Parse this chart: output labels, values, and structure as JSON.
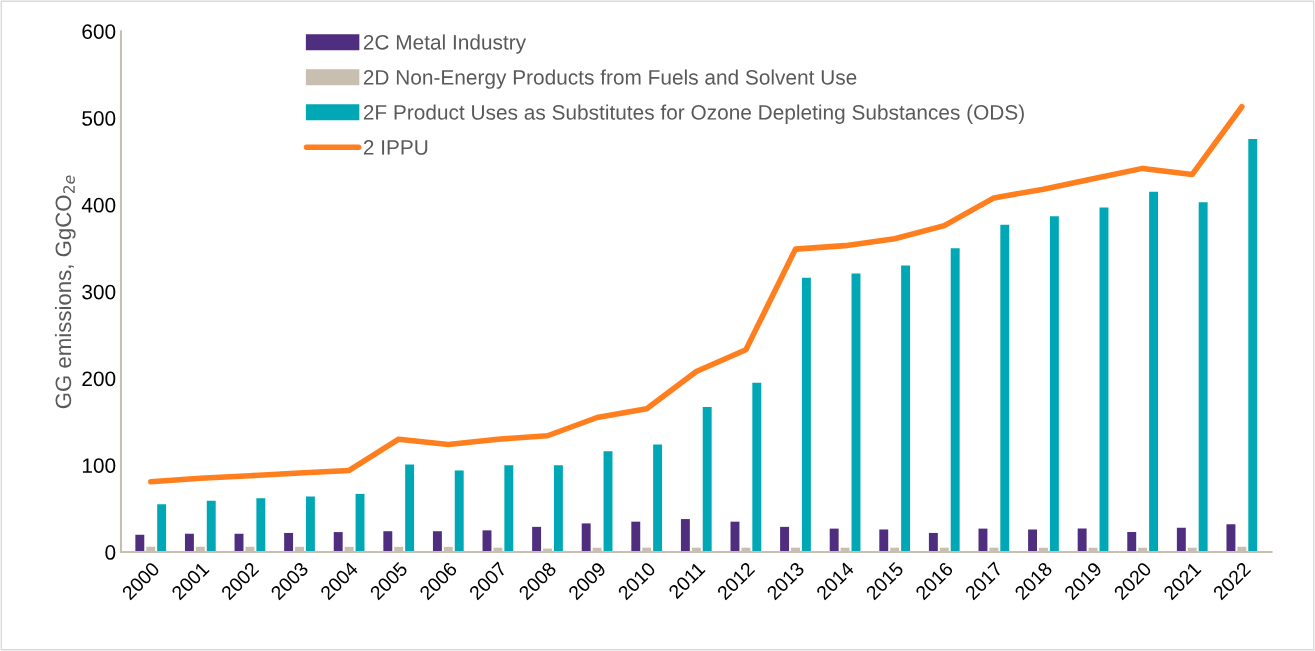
{
  "chart_data": {
    "type": "bar",
    "ylabel": "GG emissions, GgCO$_{2e}$",
    "categories": [
      "2000",
      "2001",
      "2002",
      "2003",
      "2004",
      "2005",
      "2006",
      "2007",
      "2008",
      "2009",
      "2010",
      "2011",
      "2012",
      "2013",
      "2014",
      "2015",
      "2016",
      "2017",
      "2018",
      "2019",
      "2020",
      "2021",
      "2022"
    ],
    "series": [
      {
        "name": "2C Metal Industry",
        "color": "#4f2d7f",
        "values": [
          20,
          21,
          21,
          22,
          23,
          24,
          24,
          25,
          29,
          33,
          35,
          38,
          35,
          29,
          27,
          26,
          22,
          27,
          26,
          27,
          23,
          28,
          32
        ]
      },
      {
        "name": "2D Non-Energy Products from Fuels and Solvent Use",
        "color": "#c8bfb0",
        "values": [
          6,
          6,
          6,
          6,
          6,
          6,
          6,
          5,
          4,
          5,
          5,
          5,
          5,
          5,
          5,
          5,
          5,
          5,
          5,
          5,
          5,
          5,
          6
        ]
      },
      {
        "name": "2F Product Uses as Substitutes for Ozone Depleting Substances (ODS)",
        "color": "#00a8b5",
        "values": [
          55,
          59,
          62,
          64,
          67,
          101,
          94,
          100,
          100,
          116,
          124,
          167,
          195,
          316,
          321,
          330,
          350,
          377,
          387,
          397,
          415,
          403,
          476
        ]
      },
      {
        "name": "2 IPPU",
        "type": "line",
        "color": "#ff7f1f",
        "line_style": "solid",
        "values": [
          81,
          85,
          88,
          91,
          94,
          130,
          124,
          130,
          134,
          155,
          165,
          208,
          233,
          349,
          353,
          361,
          376,
          408,
          418,
          430,
          442,
          435,
          513
        ]
      }
    ],
    "ylim": [
      0,
      600
    ],
    "yticks": [
      0,
      100,
      200,
      300,
      400,
      500,
      600
    ],
    "grid": false,
    "legend": "top left"
  }
}
